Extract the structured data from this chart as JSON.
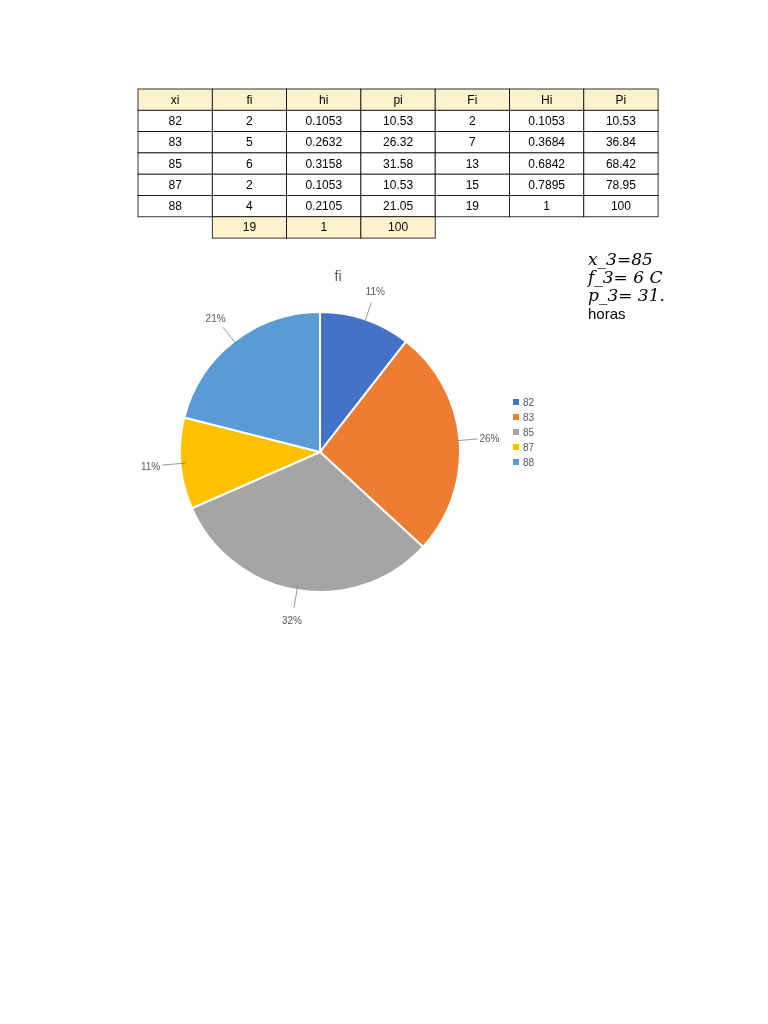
{
  "chart_data": [
    {
      "type": "other",
      "categories": [
        "xi",
        "fi",
        "hi",
        "pi",
        "Fi",
        "Hi",
        "Pi"
      ],
      "cell_labels": [
        [
          "82",
          "2",
          "0.1053",
          "10.53",
          "2",
          "0.1053",
          "10.53"
        ],
        [
          "83",
          "5",
          "0.2632",
          "26.32",
          "7",
          "0.3684",
          "36.84"
        ],
        [
          "85",
          "6",
          "0.3158",
          "31.58",
          "13",
          "0.6842",
          "68.42"
        ],
        [
          "87",
          "2",
          "0.1053",
          "10.53",
          "15",
          "0.7895",
          "78.95"
        ],
        [
          "88",
          "4",
          "0.2105",
          "21.05",
          "19",
          "1",
          "100"
        ],
        [
          null,
          "19",
          "1",
          "100",
          null,
          null,
          null
        ]
      ],
      "annotations": [
        "x_3=85",
        "f_3= 6 C",
        "p_3= 31.",
        "horas"
      ]
    },
    {
      "type": "pie",
      "title": "fi",
      "categories": [
        "82",
        "83",
        "85",
        "87",
        "88"
      ],
      "values": [
        10.53,
        26.32,
        31.58,
        10.53,
        21.05
      ],
      "colors": [
        "#4472c4",
        "#ed7d31",
        "#a5a5a5",
        "#ffc000",
        "#5b9bd5"
      ],
      "value_labels": [
        "11%",
        "26%",
        "32%",
        "11%",
        "21%"
      ],
      "legend": "right"
    }
  ]
}
